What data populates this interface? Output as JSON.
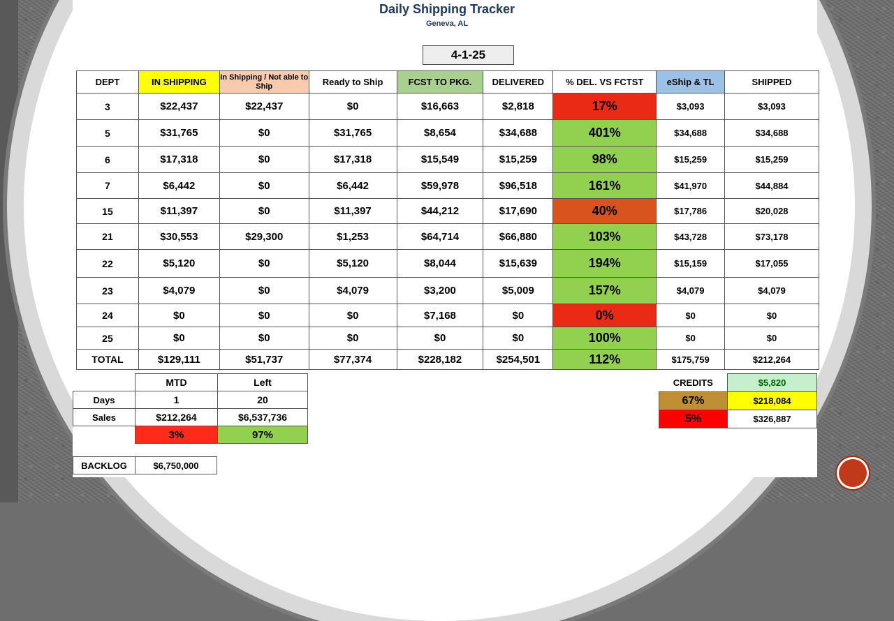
{
  "header": {
    "title": "Daily Shipping Tracker",
    "subtitle": "Geneva, AL",
    "date": "4-1-25"
  },
  "table": {
    "headers": [
      "DEPT",
      "IN SHIPPING",
      "In Shipping / Not able to Ship",
      "Ready to Ship",
      "FCST TO PKG.",
      "DELIVERED",
      "% DEL. VS FCTST",
      "eShip & TL",
      "SHIPPED"
    ],
    "rows": [
      {
        "dept": "3",
        "in_shipping": "$22,437",
        "not_able": "$22,437",
        "ready": "$0",
        "fcst": "$16,663",
        "delivered": "$2,818",
        "pct": "17%",
        "pct_status": "red",
        "eship": "$3,093",
        "shipped": "$3,093"
      },
      {
        "dept": "5",
        "in_shipping": "$31,765",
        "not_able": "$0",
        "ready": "$31,765",
        "fcst": "$8,654",
        "delivered": "$34,688",
        "pct": "401%",
        "pct_status": "green",
        "eship": "$34,688",
        "shipped": "$34,688"
      },
      {
        "dept": "6",
        "in_shipping": "$17,318",
        "not_able": "$0",
        "ready": "$17,318",
        "fcst": "$15,549",
        "delivered": "$15,259",
        "pct": "98%",
        "pct_status": "green",
        "eship": "$15,259",
        "shipped": "$15,259"
      },
      {
        "dept": "7",
        "in_shipping": "$6,442",
        "not_able": "$0",
        "ready": "$6,442",
        "fcst": "$59,978",
        "delivered": "$96,518",
        "pct": "161%",
        "pct_status": "green",
        "eship": "$41,970",
        "shipped": "$44,884"
      },
      {
        "dept": "15",
        "in_shipping": "$11,397",
        "not_able": "$0",
        "ready": "$11,397",
        "fcst": "$44,212",
        "delivered": "$17,690",
        "pct": "40%",
        "pct_status": "orange",
        "eship": "$17,786",
        "shipped": "$20,028"
      },
      {
        "dept": "21",
        "in_shipping": "$30,553",
        "not_able": "$29,300",
        "ready": "$1,253",
        "fcst": "$64,714",
        "delivered": "$66,880",
        "pct": "103%",
        "pct_status": "green",
        "eship": "$43,728",
        "shipped": "$73,178"
      },
      {
        "dept": "22",
        "in_shipping": "$5,120",
        "not_able": "$0",
        "ready": "$5,120",
        "fcst": "$8,044",
        "delivered": "$15,639",
        "pct": "194%",
        "pct_status": "green",
        "eship": "$15,159",
        "shipped": "$17,055"
      },
      {
        "dept": "23",
        "in_shipping": "$4,079",
        "not_able": "$0",
        "ready": "$4,079",
        "fcst": "$3,200",
        "delivered": "$5,009",
        "pct": "157%",
        "pct_status": "green",
        "eship": "$4,079",
        "shipped": "$4,079"
      },
      {
        "dept": "24",
        "in_shipping": "$0",
        "not_able": "$0",
        "ready": "$0",
        "fcst": "$7,168",
        "delivered": "$0",
        "pct": "0%",
        "pct_status": "red",
        "eship": "$0",
        "shipped": "$0"
      },
      {
        "dept": "25",
        "in_shipping": "$0",
        "not_able": "$0",
        "ready": "$0",
        "fcst": "$0",
        "delivered": "$0",
        "pct": "100%",
        "pct_status": "green",
        "eship": "$0",
        "shipped": "$0"
      },
      {
        "dept": "TOTAL",
        "in_shipping": "$129,111",
        "not_able": "$51,737",
        "ready": "$77,374",
        "fcst": "$228,182",
        "delivered": "$254,501",
        "pct": "112%",
        "pct_status": "green",
        "eship": "$175,759",
        "shipped": "$212,264"
      }
    ]
  },
  "mtd": {
    "col_mtd": "MTD",
    "col_left": "Left",
    "days_label": "Days",
    "days_mtd": "1",
    "days_left": "20",
    "sales_label": "Sales",
    "sales_mtd": "$212,264",
    "sales_left": "$6,537,736",
    "pct_mtd": "3%",
    "pct_left": "97%"
  },
  "backlog": {
    "label": "BACKLOG",
    "value": "$6,750,000"
  },
  "credits": {
    "label": "CREDITS",
    "value": "$5,820",
    "row1_pct": "67%",
    "row1_value": "$218,084",
    "row2_pct": "5%",
    "row2_value": "$326,887"
  },
  "colors": {
    "green": "#92d050",
    "red": "#ff2a1a",
    "orange": "#d9531e",
    "yellow": "#ffff00",
    "title": "#1f3864"
  },
  "icons": {
    "nav_button": "next-slide-button-icon"
  }
}
